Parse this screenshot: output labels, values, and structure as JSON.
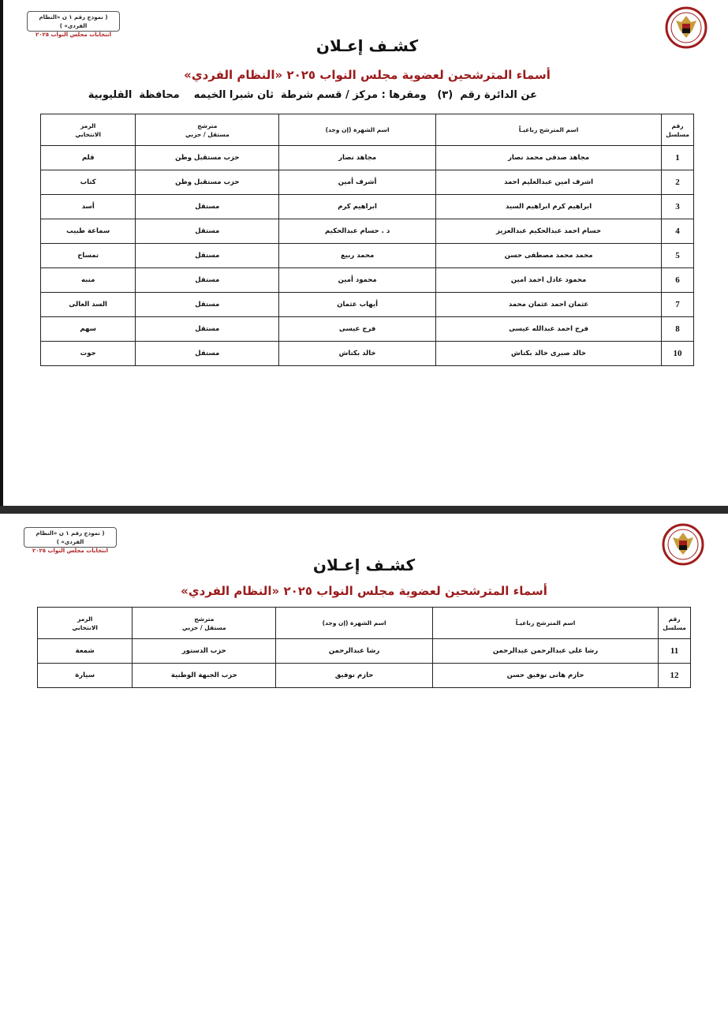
{
  "form_box": {
    "line1": "( نموذج رقم ١ ن «النظام الفردي» )",
    "line2": "انتخابات مجلس النواب ٢٠٢٥"
  },
  "colors": {
    "subtitle": "#9b1b1b",
    "logo_red": "#a01c1c",
    "logo_gold": "#c89b3c"
  },
  "logo_icon": "egypt-national-elections-authority-seal",
  "title": "كشـف إعـلان",
  "subtitle": "أسماء المترشحين لعضوية مجلس النواب ٢٠٢٥ «النظام الفردي»",
  "district": "عن الدائرة رقم  (٣)   ومقرها : مركز / قسم شرطة  ثان شبرا الخيمه    محافظة  القليوبية",
  "headers": {
    "serial": "رقم\nمسلسل",
    "full_name": "اسم المترشح رباعيـاً",
    "fame_name": "اسم الشهرة (إن وجد)",
    "type": "مترشح\nمستقل / حزبي",
    "symbol": "الرمز\nالانتخابي"
  },
  "page1_rows": [
    {
      "serial": "1",
      "full_name": "مجاهد صدقى محمد نصار",
      "fame_name": "مجاهد نصار",
      "type": "حزب مستقبل وطن",
      "symbol": "قلم"
    },
    {
      "serial": "2",
      "full_name": "اشرف امين عبدالعليم احمد",
      "fame_name": "أشرف أمين",
      "type": "حزب مستقبل وطن",
      "symbol": "كتاب"
    },
    {
      "serial": "3",
      "full_name": "ابراهيم كرم ابراهيم السيد",
      "fame_name": "ابراهيم كرم",
      "type": "مستقل",
      "symbol": "أسد"
    },
    {
      "serial": "4",
      "full_name": "حسام احمد عبدالحكيم عبدالعزيز",
      "fame_name": "د . حسام عبدالحكيم",
      "type": "مستقل",
      "symbol": "سماعة طبيب"
    },
    {
      "serial": "5",
      "full_name": "محمد محمد مصطفى حسن",
      "fame_name": "محمد ربيع",
      "type": "مستقل",
      "symbol": "تمساح"
    },
    {
      "serial": "6",
      "full_name": "محمود عادل احمد امين",
      "fame_name": "محمود أمين",
      "type": "مستقل",
      "symbol": "منبه"
    },
    {
      "serial": "7",
      "full_name": "عثمان احمد عثمان محمد",
      "fame_name": "أيهاب عثمان",
      "type": "مستقل",
      "symbol": "السد العالى"
    },
    {
      "serial": "8",
      "full_name": "فرج احمد عبدالله عيسى",
      "fame_name": "فرج عيسى",
      "type": "مستقل",
      "symbol": "سهم"
    },
    {
      "serial": "10",
      "full_name": "خالد صبرى خالد بكتاش",
      "fame_name": "خالد بكتاش",
      "type": "مستقل",
      "symbol": "حوت"
    }
  ],
  "page2_rows": [
    {
      "serial": "11",
      "full_name": "رشا على عبدالرحمن عبدالرحمن",
      "fame_name": "رشا عبدالرحمن",
      "type": "حزب الدستور",
      "symbol": "شمعة"
    },
    {
      "serial": "12",
      "full_name": "حازم هانى توفيق حسن",
      "fame_name": "حازم توفيق",
      "type": "حزب الجبهة الوطنية",
      "symbol": "سيارة"
    }
  ]
}
